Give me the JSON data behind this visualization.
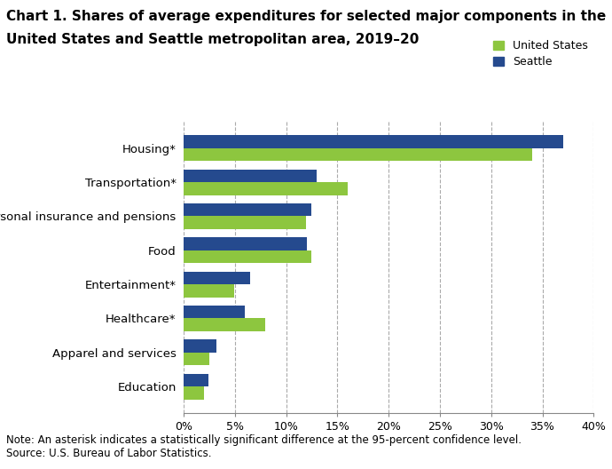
{
  "title_line1": "Chart 1. Shares of average expenditures for selected major components in the",
  "title_line2": "United States and Seattle metropolitan area, 2019–20",
  "categories": [
    "Housing*",
    "Transportation*",
    "Personal insurance and pensions",
    "Food",
    "Entertainment*",
    "Healthcare*",
    "Apparel and services",
    "Education"
  ],
  "us_values": [
    34.0,
    16.0,
    11.9,
    12.5,
    4.9,
    8.0,
    2.5,
    2.0
  ],
  "seattle_values": [
    37.0,
    13.0,
    12.5,
    12.0,
    6.5,
    6.0,
    3.2,
    2.4
  ],
  "us_color": "#8dc63f",
  "seattle_color": "#254a8e",
  "legend_labels": [
    "United States",
    "Seattle"
  ],
  "xlim": [
    0,
    40
  ],
  "xtick_values": [
    0,
    5,
    10,
    15,
    20,
    25,
    30,
    35,
    40
  ],
  "xtick_labels": [
    "0%",
    "5%",
    "10%",
    "15%",
    "20%",
    "25%",
    "30%",
    "35%",
    "40%"
  ],
  "note": "Note: An asterisk indicates a statistically significant difference at the 95-percent confidence level.\nSource: U.S. Bureau of Labor Statistics.",
  "bar_height": 0.38,
  "background_color": "#ffffff",
  "grid_color": "#aaaaaa",
  "title_fontsize": 11,
  "label_fontsize": 9.5,
  "tick_fontsize": 9,
  "note_fontsize": 8.5
}
